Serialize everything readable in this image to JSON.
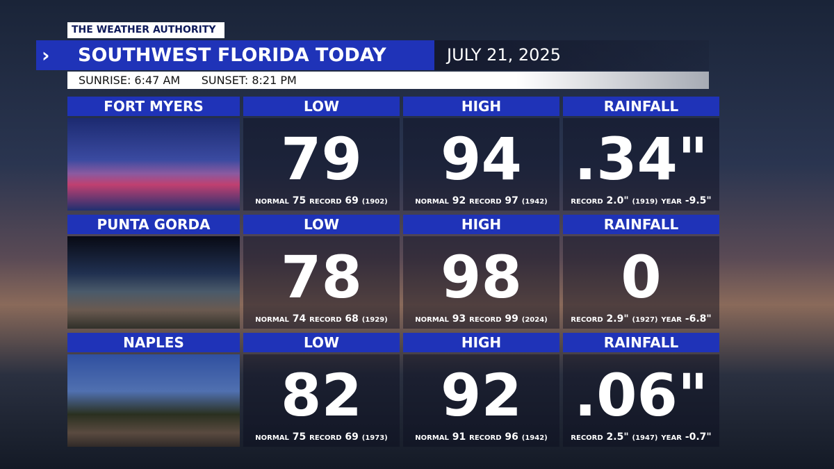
{
  "header": {
    "brand": "THE WEATHER AUTHORITY",
    "title": "SOUTHWEST FLORIDA TODAY",
    "date": "JULY 21, 2025",
    "sunrise_label": "SUNRISE:",
    "sunrise": "6:47 AM",
    "sunset_label": "SUNSET:",
    "sunset": "8:21 PM"
  },
  "columns": [
    "LOW",
    "HIGH",
    "RAINFALL"
  ],
  "labels": {
    "normal": "NORMAL",
    "record": "RECORD",
    "year": "YEAR"
  },
  "rows": [
    {
      "city": "FORT MYERS",
      "low": {
        "value": "79",
        "normal": "75",
        "record": "69",
        "record_year": "(1902)"
      },
      "high": {
        "value": "94",
        "normal": "92",
        "record": "97",
        "record_year": "(1942)"
      },
      "rain": {
        "value": ".34\"",
        "record": "2.0\"",
        "record_year": "(1919)",
        "year": "-9.5\""
      }
    },
    {
      "city": "PUNTA GORDA",
      "low": {
        "value": "78",
        "normal": "74",
        "record": "68",
        "record_year": "(1929)"
      },
      "high": {
        "value": "98",
        "normal": "93",
        "record": "99",
        "record_year": "(2024)"
      },
      "rain": {
        "value": "0",
        "record": "2.9\"",
        "record_year": "(1927)",
        "year": "-6.8\""
      }
    },
    {
      "city": "NAPLES",
      "low": {
        "value": "82",
        "normal": "75",
        "record": "69",
        "record_year": "(1973)"
      },
      "high": {
        "value": "92",
        "normal": "91",
        "record": "96",
        "record_year": "(1942)"
      },
      "rain": {
        "value": ".06\"",
        "record": "2.5\"",
        "record_year": "(1947)",
        "year": "-0.7\""
      }
    }
  ]
}
